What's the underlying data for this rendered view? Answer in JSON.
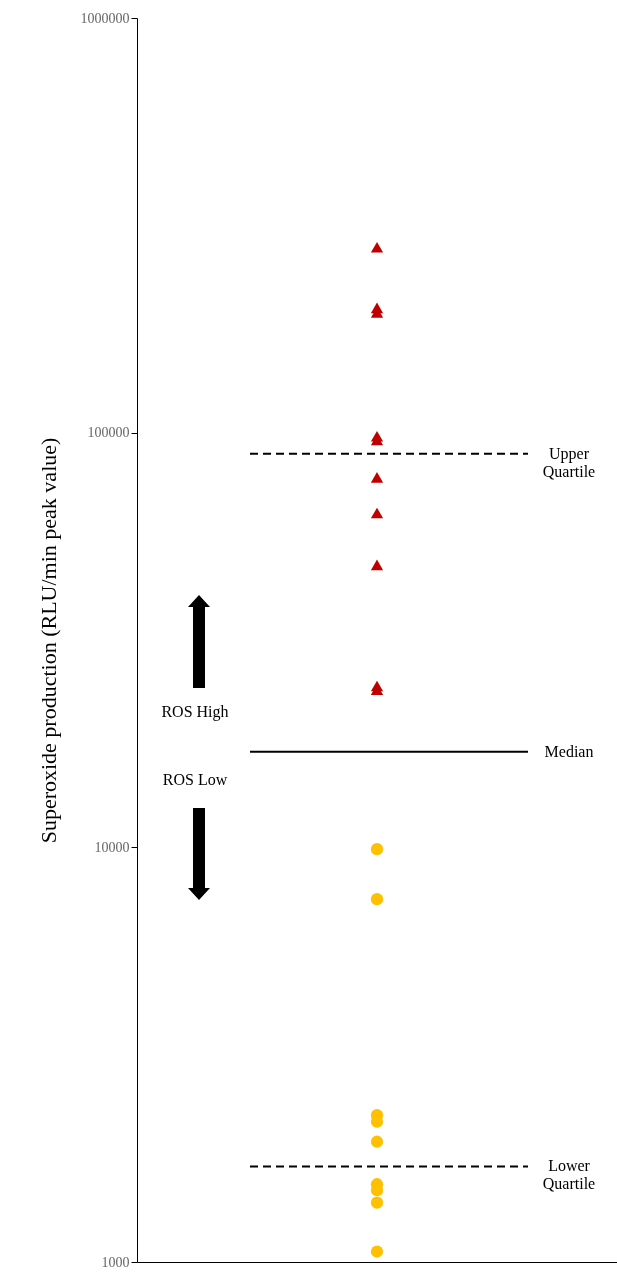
{
  "chart_data": {
    "type": "scatter",
    "ylabel": "Superoxide production (RLU/min peak value)",
    "categories": [
      null
    ],
    "log": true,
    "ylim": [
      1000,
      1000000
    ],
    "yticks": [
      1000,
      10000,
      100000,
      1000000
    ],
    "grid": false,
    "tick_labels": "y",
    "series": [
      {
        "color": "#c00000",
        "marker": "triangle",
        "x": [
          null,
          null,
          null,
          null,
          null,
          null,
          null,
          null,
          null,
          null
        ],
        "values": [
          280000,
          200000,
          195000,
          98000,
          96000,
          78000,
          64000,
          48000,
          24500,
          24000
        ]
      },
      {
        "color": "#ffc000",
        "marker": "circle",
        "x": [
          null,
          null,
          null,
          null,
          null,
          null,
          null,
          null,
          null
        ],
        "values": [
          9900,
          7500,
          2260,
          2180,
          1950,
          1540,
          1490,
          1390,
          1060
        ]
      }
    ],
    "ref_lines": [
      {
        "axis": "y",
        "value": 89000,
        "label": "Upper Quartile",
        "line_style": "dashed",
        "color": "#000000"
      },
      {
        "axis": "y",
        "value": 17000,
        "label": "Median",
        "line_style": "solid",
        "color": "#000000"
      },
      {
        "axis": "y",
        "value": 1700,
        "label": "Lower Quartile",
        "line_style": "dashed",
        "color": "#000000"
      }
    ],
    "annotations": [
      "ROS High",
      "ROS Low"
    ]
  }
}
